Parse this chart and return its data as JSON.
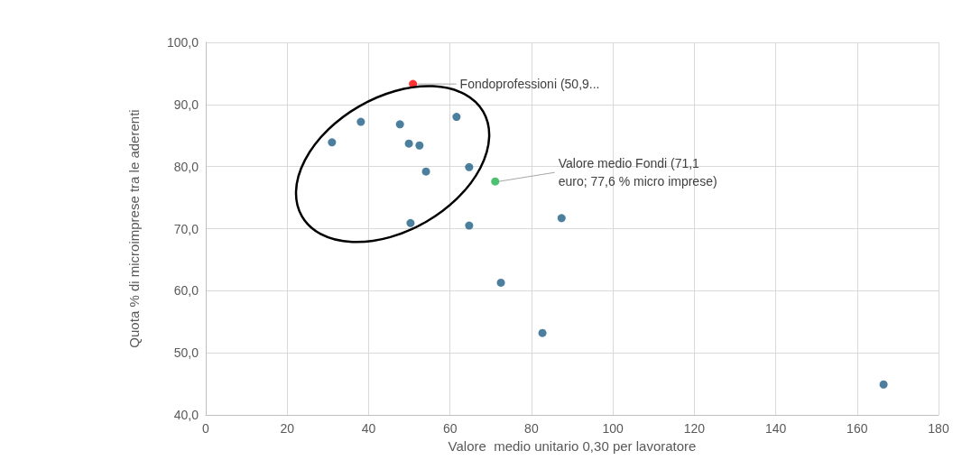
{
  "chart_data": {
    "type": "scatter",
    "xlabel": "Valore  medio unitario 0,30 per lavoratore",
    "ylabel": "Quota % di microimprese tra le aderenti",
    "series": [
      {
        "color": "#1f5f86",
        "x": [
          31.0,
          38.1,
          47.7,
          49.9,
          52.5,
          54.1,
          61.6,
          64.7,
          50.3,
          64.7,
          87.4,
          72.5,
          82.7,
          166.5
        ],
        "values": [
          83.9,
          87.2,
          86.8,
          83.7,
          83.4,
          79.2,
          88.0,
          79.9,
          70.9,
          70.5,
          71.7,
          61.3,
          53.2,
          44.9
        ]
      },
      {
        "color": "#ff0000",
        "x": [
          50.9
        ],
        "values": [
          93.3
        ]
      },
      {
        "color": "#22b24c",
        "x": [
          71.1
        ],
        "values": [
          77.6
        ]
      }
    ],
    "annotations": [
      {
        "text": "Fondoprofessioni (50,9...",
        "x": 50.9,
        "y": 93.3
      },
      {
        "text": "Valore medio Fondi (71,1\neuro; 77,6 % micro imprese)",
        "x": 71.1,
        "y": 77.6
      }
    ],
    "xlim": [
      0,
      180
    ],
    "xticks": [
      0,
      20,
      40,
      60,
      80,
      100,
      120,
      140,
      160,
      180
    ],
    "ylim": [
      40,
      100
    ],
    "yticks": [
      {
        "value": 40,
        "label": "40,0"
      },
      {
        "value": 50,
        "label": "50,0"
      },
      {
        "value": 60,
        "label": "60,0"
      },
      {
        "value": 70,
        "label": "70,0"
      },
      {
        "value": 80,
        "label": "80,0"
      },
      {
        "value": 90,
        "label": "90,0"
      },
      {
        "value": 100,
        "label": "100,0"
      }
    ],
    "grid": true,
    "marker": "circle"
  }
}
